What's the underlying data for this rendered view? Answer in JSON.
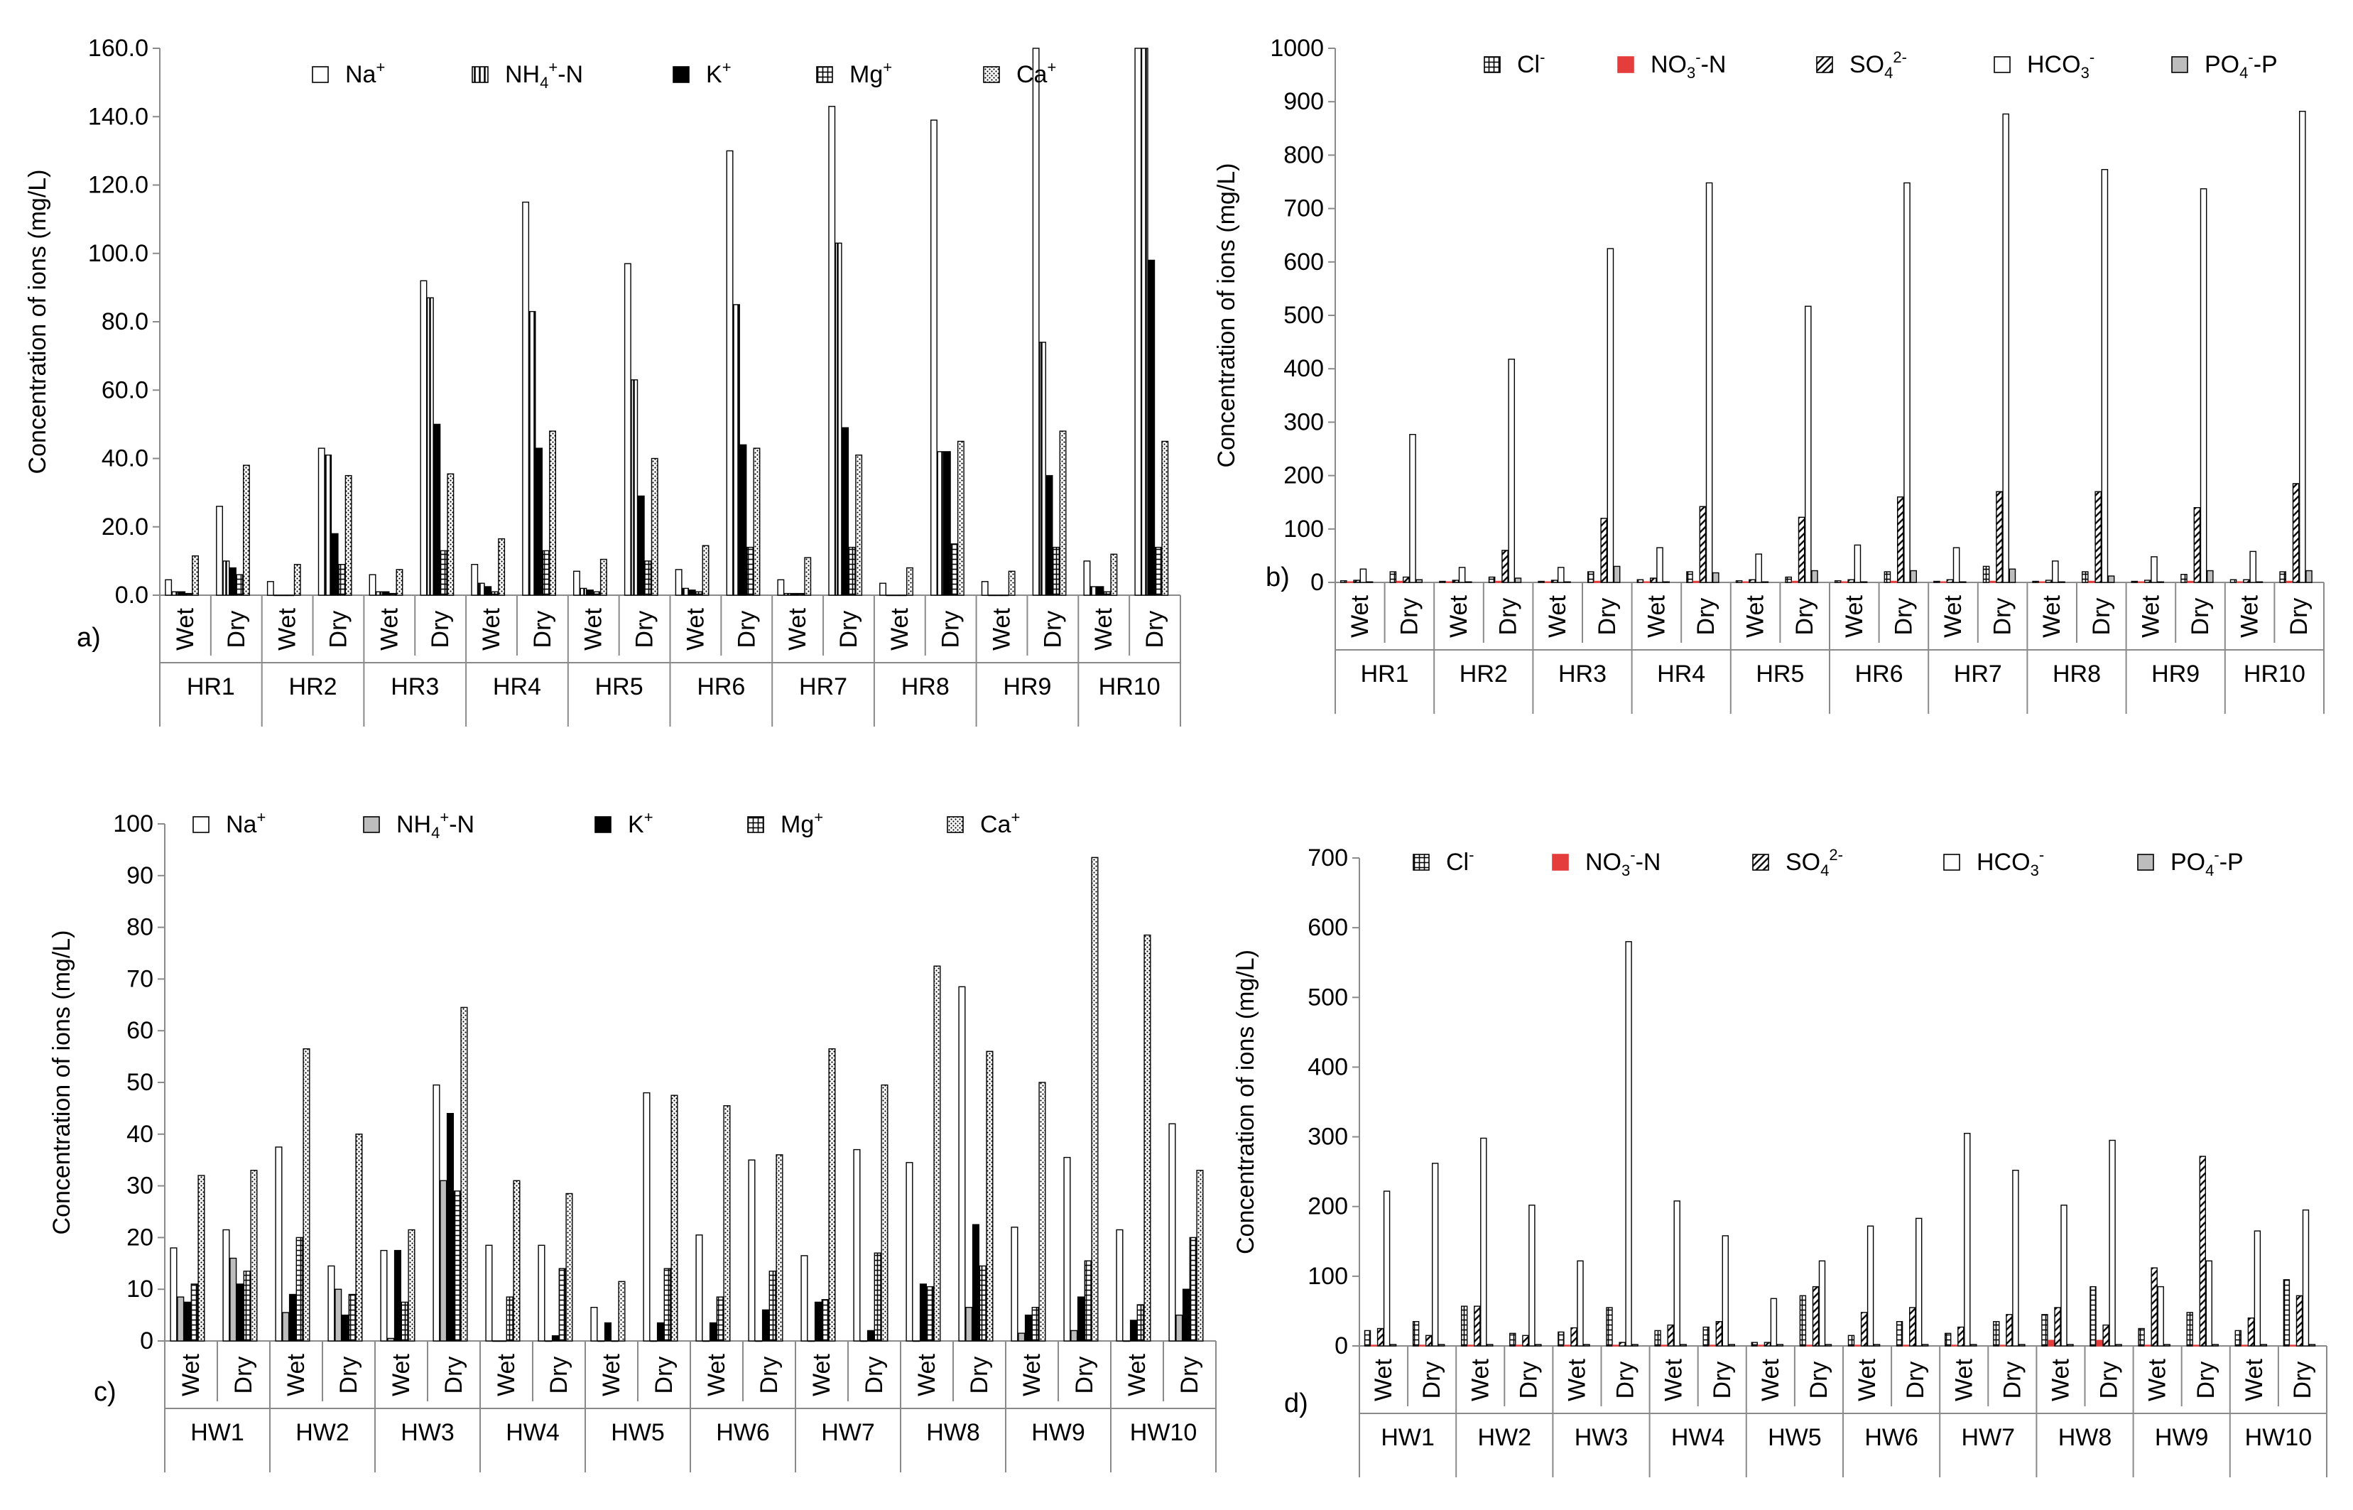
{
  "colors": {
    "axis": "#8a8a8a",
    "bar_stroke": "#000000",
    "nitrate": "#e53c3c",
    "phosphate": "#bdbdbd",
    "background": "#ffffff"
  },
  "chart_data": [
    {
      "id": "a",
      "type": "bar",
      "panel_label": "a)",
      "ylabel": "Concentration of ions (mg/L)",
      "ylim": [
        0,
        160
      ],
      "ytick_step": 20,
      "ytick_decimals": 1,
      "subcategories": [
        "Wet",
        "Dry"
      ],
      "groups": [
        "HR1",
        "HR2",
        "HR3",
        "HR4",
        "HR5",
        "HR6",
        "HR7",
        "HR8",
        "HR9",
        "HR10"
      ],
      "legend": [
        {
          "sym": "open",
          "label": "Na",
          "sup": "+"
        },
        {
          "sym": "vline",
          "label": "NH",
          "sub": "4",
          "sup": "+",
          "tail": "-N"
        },
        {
          "sym": "solid",
          "label": "K",
          "sup": "+"
        },
        {
          "sym": "grid",
          "label": "Mg",
          "sup": "+"
        },
        {
          "sym": "dots",
          "label": "Ca",
          "sup": "+"
        }
      ],
      "series": [
        {
          "name": "Na+",
          "pattern": "open",
          "values": [
            4.5,
            26,
            4,
            43,
            6,
            92,
            9,
            115,
            7,
            97,
            7.5,
            130,
            4.5,
            143,
            3.5,
            139,
            4,
            160,
            10,
            160
          ]
        },
        {
          "name": "NH4+-N",
          "pattern": "vline",
          "values": [
            1,
            10,
            0,
            41,
            1,
            87,
            3.5,
            83,
            2,
            63,
            2,
            85,
            0.5,
            103,
            0,
            42,
            0,
            74,
            2.5,
            160
          ]
        },
        {
          "name": "K+",
          "pattern": "solid",
          "values": [
            1,
            8,
            0,
            18,
            1,
            50,
            2.5,
            43,
            1.5,
            29,
            1.5,
            44,
            0.5,
            49,
            0,
            42,
            0,
            35,
            2.5,
            98
          ]
        },
        {
          "name": "Mg+",
          "pattern": "grid",
          "values": [
            0.5,
            6,
            0,
            9,
            0.5,
            13,
            1,
            13,
            1,
            10,
            1,
            14,
            0.5,
            14,
            0,
            15,
            0,
            14,
            1,
            14
          ]
        },
        {
          "name": "Ca+",
          "pattern": "dots",
          "values": [
            11.5,
            38,
            9,
            35,
            7.5,
            35.5,
            16.5,
            48,
            10.5,
            40,
            14.5,
            43,
            11,
            41,
            8,
            45,
            7,
            48,
            12,
            45
          ]
        }
      ]
    },
    {
      "id": "b",
      "type": "bar",
      "panel_label": "b)",
      "ylabel": "Concentration of ions (mg/L)",
      "ylim": [
        0,
        1000
      ],
      "ytick_step": 100,
      "ytick_decimals": 0,
      "subcategories": [
        "Wet",
        "Dry"
      ],
      "groups": [
        "HR1",
        "HR2",
        "HR3",
        "HR4",
        "HR5",
        "HR6",
        "HR7",
        "HR8",
        "HR9",
        "HR10"
      ],
      "legend": [
        {
          "sym": "grid",
          "label": "Cl",
          "sup": "-"
        },
        {
          "sym": "red",
          "label": "NO",
          "sub": "3",
          "sup": "-",
          "tail": "-N"
        },
        {
          "sym": "diag",
          "label": "SO",
          "sub": "4",
          "sup": "2-"
        },
        {
          "sym": "open",
          "label": "HCO",
          "sub": "3",
          "sup": "-"
        },
        {
          "sym": "gray",
          "label": "PO",
          "sub": "4",
          "sup": "-",
          "tail": "-P"
        }
      ],
      "series": [
        {
          "name": "Cl-",
          "pattern": "grid",
          "values": [
            3,
            20,
            2,
            10,
            2,
            20,
            5,
            20,
            3,
            10,
            3,
            20,
            2,
            30,
            2,
            20,
            2,
            15,
            5,
            20
          ]
        },
        {
          "name": "NO3--N",
          "pattern": "red",
          "values": [
            1,
            2,
            1,
            2,
            1,
            2,
            1,
            2,
            1,
            2,
            1,
            2,
            1,
            2,
            1,
            2,
            1,
            2,
            1,
            2
          ]
        },
        {
          "name": "SO42-",
          "pattern": "diag",
          "values": [
            4,
            10,
            4,
            60,
            4,
            120,
            8,
            142,
            5,
            122,
            5,
            160,
            5,
            170,
            4,
            170,
            4,
            140,
            5,
            185
          ]
        },
        {
          "name": "HCO3-",
          "pattern": "open",
          "values": [
            25,
            277,
            28,
            418,
            28,
            625,
            65,
            748,
            53,
            517,
            70,
            748,
            65,
            877,
            40,
            773,
            48,
            737,
            58,
            882
          ]
        },
        {
          "name": "PO4--P",
          "pattern": "gray",
          "values": [
            1,
            5,
            1,
            8,
            1,
            30,
            1,
            18,
            1,
            22,
            1,
            22,
            1,
            25,
            1,
            12,
            1,
            22,
            1,
            22
          ]
        }
      ]
    },
    {
      "id": "c",
      "type": "bar",
      "panel_label": "c)",
      "ylabel": "Concentration of ions (mg/L)",
      "ylim": [
        0,
        100
      ],
      "ytick_step": 10,
      "ytick_decimals": 0,
      "subcategories": [
        "Wet",
        "Dry"
      ],
      "groups": [
        "HW1",
        "HW2",
        "HW3",
        "HW4",
        "HW5",
        "HW6",
        "HW7",
        "HW8",
        "HW9",
        "HW10"
      ],
      "legend": [
        {
          "sym": "open",
          "label": "Na",
          "sup": "+"
        },
        {
          "sym": "gray",
          "label": "NH",
          "sub": "4",
          "sup": "+",
          "tail": "-N"
        },
        {
          "sym": "solid",
          "label": "K",
          "sup": "+"
        },
        {
          "sym": "grid",
          "label": "Mg",
          "sup": "+"
        },
        {
          "sym": "dots",
          "label": "Ca",
          "sup": "+"
        }
      ],
      "series": [
        {
          "name": "Na+",
          "pattern": "open",
          "values": [
            18,
            21.5,
            37.5,
            14.5,
            17.5,
            49.5,
            18.5,
            18.5,
            6.5,
            48,
            20.5,
            35,
            16.5,
            37,
            34.5,
            68.5,
            22,
            35.5,
            21.5,
            42
          ]
        },
        {
          "name": "NH4+-N",
          "pattern": "gray",
          "values": [
            8.5,
            16,
            5.5,
            10,
            0.5,
            31,
            0,
            0,
            0,
            0,
            0,
            0,
            0,
            0,
            0,
            6.5,
            1.5,
            2,
            0,
            5
          ]
        },
        {
          "name": "K+",
          "pattern": "solid",
          "values": [
            7.5,
            11,
            9,
            5,
            17.5,
            44,
            0,
            1,
            3.5,
            3.5,
            3.5,
            6,
            7.5,
            2,
            11,
            22.5,
            5,
            8.5,
            4,
            10
          ]
        },
        {
          "name": "Mg+",
          "pattern": "grid",
          "values": [
            11,
            13.5,
            20,
            9,
            7.5,
            29,
            8.5,
            14,
            0,
            14,
            8.5,
            13.5,
            8,
            17,
            10.5,
            14.5,
            6.5,
            15.5,
            7,
            20
          ]
        },
        {
          "name": "Ca+",
          "pattern": "dots",
          "values": [
            32,
            33,
            56.5,
            40,
            21.5,
            64.5,
            31,
            28.5,
            11.5,
            47.5,
            45.5,
            36,
            56.5,
            49.5,
            72.5,
            56,
            50,
            93.5,
            78.5,
            33
          ]
        }
      ]
    },
    {
      "id": "d",
      "type": "bar",
      "panel_label": "d)",
      "ylabel": "Concentration of ions (mg/L)",
      "ylim": [
        0,
        700
      ],
      "ytick_step": 100,
      "ytick_decimals": 0,
      "subcategories": [
        "Wet",
        "Dry"
      ],
      "groups": [
        "HW1",
        "HW2",
        "HW3",
        "HW4",
        "HW5",
        "HW6",
        "HW7",
        "HW8",
        "HW9",
        "HW10"
      ],
      "legend": [
        {
          "sym": "grid",
          "label": "Cl",
          "sup": "-"
        },
        {
          "sym": "red",
          "label": "NO",
          "sub": "3",
          "sup": "-",
          "tail": "-N"
        },
        {
          "sym": "diag",
          "label": "SO",
          "sub": "4",
          "sup": "2-"
        },
        {
          "sym": "open",
          "label": "HCO",
          "sub": "3",
          "sup": "-"
        },
        {
          "sym": "gray",
          "label": "PO",
          "sub": "4",
          "sup": "-",
          "tail": "-P"
        }
      ],
      "series": [
        {
          "name": "Cl-",
          "pattern": "grid",
          "values": [
            22,
            35,
            57,
            18,
            20,
            55,
            22,
            27,
            5,
            72,
            15,
            35,
            18,
            35,
            45,
            85,
            25,
            48,
            22,
            95
          ]
        },
        {
          "name": "NO3--N",
          "pattern": "red",
          "values": [
            1,
            1,
            1,
            1,
            1,
            1,
            1,
            1,
            1,
            1,
            1,
            1,
            1,
            1,
            8,
            8,
            1,
            1,
            1,
            1
          ]
        },
        {
          "name": "SO42-",
          "pattern": "diag",
          "values": [
            25,
            15,
            57,
            15,
            26,
            5,
            30,
            35,
            5,
            85,
            48,
            55,
            27,
            45,
            55,
            30,
            112,
            272,
            40,
            72
          ]
        },
        {
          "name": "HCO3-",
          "pattern": "open",
          "values": [
            222,
            262,
            298,
            202,
            122,
            580,
            208,
            158,
            68,
            122,
            172,
            183,
            305,
            252,
            202,
            295,
            85,
            122,
            165,
            195
          ]
        },
        {
          "name": "PO4--P",
          "pattern": "gray",
          "values": [
            2,
            2,
            2,
            2,
            2,
            2,
            2,
            2,
            2,
            2,
            2,
            2,
            2,
            2,
            2,
            2,
            2,
            2,
            2,
            2
          ]
        }
      ]
    }
  ]
}
